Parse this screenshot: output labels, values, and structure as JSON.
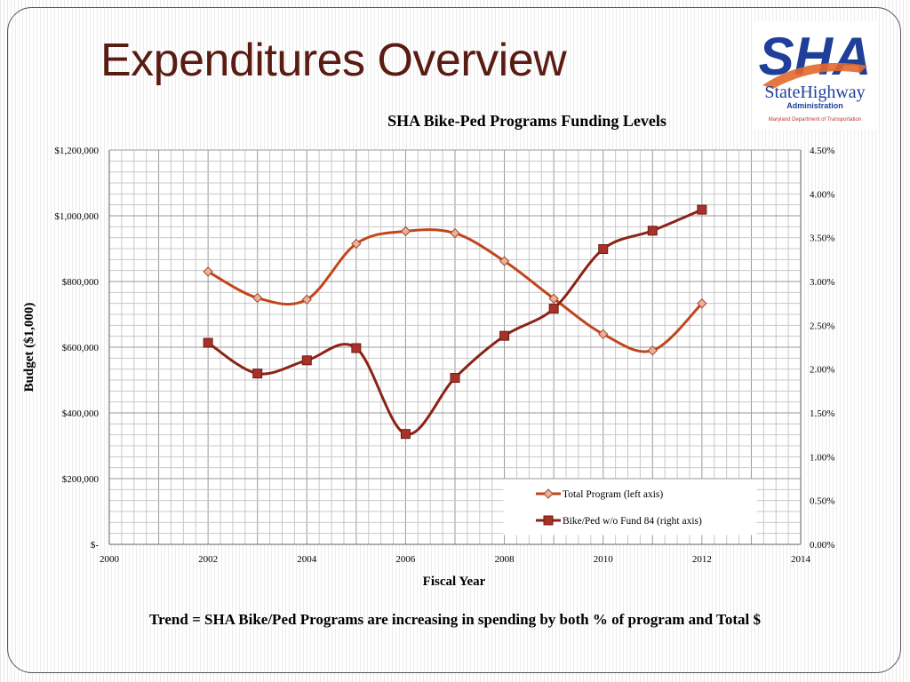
{
  "slide": {
    "title": "Expenditures Overview",
    "footer": "Trend = SHA Bike/Ped Programs are increasing in spending by both % of program and Total $"
  },
  "logo": {
    "text": "SHA",
    "line2": "StateHighway",
    "line3": "Administration",
    "line4": "Maryland Department of Transportation",
    "colors": {
      "blue": "#1f3f99",
      "orange": "#e2682c"
    }
  },
  "chart_data": {
    "type": "line",
    "title": "SHA Bike-Ped Programs Funding Levels",
    "xlabel": "Fiscal Year",
    "ylabel": "Budget ($1,000)",
    "xlim": [
      2000,
      2014
    ],
    "x_ticks": [
      "2000",
      "2002",
      "2004",
      "2006",
      "2008",
      "2010",
      "2012",
      "2014"
    ],
    "ylim_left": [
      0,
      1200000
    ],
    "y_left_ticks": [
      "$-",
      "$200,000",
      "$400,000",
      "$600,000",
      "$800,000",
      "$1,000,000",
      "$1,200,000"
    ],
    "ylim_right": [
      0,
      4.5
    ],
    "y_right_ticks": [
      "0.00%",
      "0.50%",
      "1.00%",
      "1.50%",
      "2.00%",
      "2.50%",
      "3.00%",
      "3.50%",
      "4.00%",
      "4.50%"
    ],
    "grid": true,
    "legend_position": "bottom-right",
    "series": [
      {
        "name": "Total Program (left axis)",
        "axis": "left",
        "color": "#c0461c",
        "marker": "diamond",
        "x": [
          2002,
          2003,
          2004,
          2005,
          2006,
          2007,
          2008,
          2009,
          2010,
          2011,
          2012
        ],
        "values": [
          830000,
          750000,
          745000,
          915000,
          953000,
          947000,
          862000,
          748000,
          640000,
          590000,
          733000
        ]
      },
      {
        "name": "Bike/Ped w/o Fund 84 (right axis)",
        "axis": "right",
        "color": "#8b2316",
        "marker": "square",
        "x": [
          2002,
          2003,
          2004,
          2005,
          2006,
          2007,
          2008,
          2009,
          2010,
          2011,
          2012
        ],
        "values": [
          2.3,
          1.95,
          2.1,
          2.24,
          1.26,
          1.9,
          2.38,
          2.69,
          3.37,
          3.58,
          3.82
        ]
      }
    ]
  }
}
